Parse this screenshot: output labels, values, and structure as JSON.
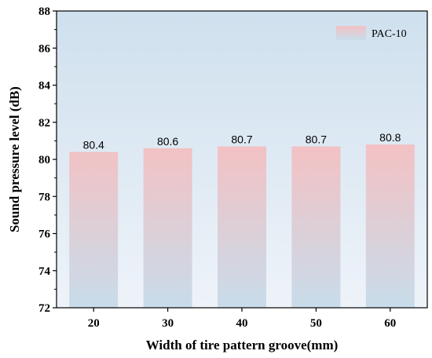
{
  "chart_data": {
    "type": "bar",
    "categories": [
      "20",
      "30",
      "40",
      "50",
      "60"
    ],
    "series": [
      {
        "name": "PAC-10",
        "values": [
          80.4,
          80.6,
          80.7,
          80.7,
          80.8
        ]
      }
    ],
    "data_labels": [
      "80.4",
      "80.6",
      "80.7",
      "80.7",
      "80.8"
    ],
    "xlabel": "Width of tire pattern groove(mm)",
    "ylabel": "Sound pressure level (dB)",
    "ylim": [
      72,
      88
    ],
    "yticks": [
      72,
      74,
      76,
      78,
      80,
      82,
      84,
      86,
      88
    ],
    "grid": false,
    "legend_position": "top-right",
    "colors": {
      "plot_background": "#e4eef7",
      "bar_top": "#f3c1c3",
      "bar_bottom": "#c8dcea"
    }
  }
}
